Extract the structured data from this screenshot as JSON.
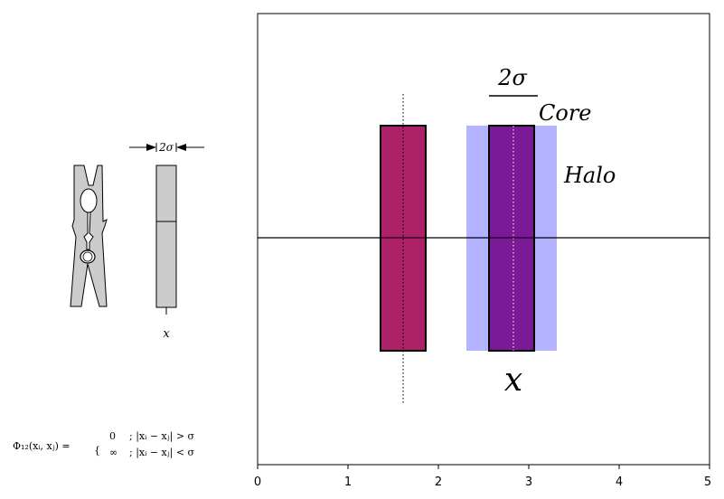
{
  "left_panel": {
    "width_label": "2σ",
    "x_label": "x",
    "formula": {
      "lhs": "Φ₁₂(xᵢ, xⱼ) =",
      "case1_value": "0",
      "case1_condition": ";   |xᵢ − xⱼ| > σ",
      "case2_value": "∞",
      "case2_condition": ";   |xᵢ − xⱼ| < σ"
    },
    "colors": {
      "fill": "#cccccc",
      "stroke": "#000000"
    }
  },
  "main_panel": {
    "labels": {
      "width": "2σ",
      "core": "Core",
      "halo": "Halo",
      "x": "x"
    },
    "x_ticks": [
      "0",
      "1",
      "2",
      "3",
      "4",
      "5"
    ],
    "xlim": [
      0,
      5
    ],
    "colors": {
      "left_rod": "#ad2168",
      "right_rod": "#7a1a96",
      "halo": "#b3b3ff",
      "axis": "#000000"
    }
  }
}
